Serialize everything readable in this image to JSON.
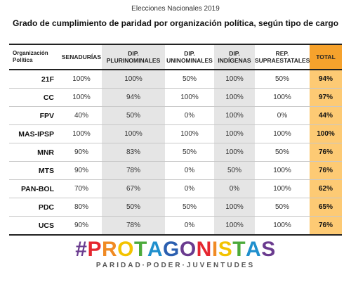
{
  "header": {
    "supertitle": "Elecciones Nacionales 2019",
    "title": "Grado de cumplimiento de paridad por organización política, según tipo de cargo"
  },
  "table": {
    "columns": [
      {
        "key": "org",
        "label": "Organización Política"
      },
      {
        "key": "sen",
        "label": "SENADURÍAS"
      },
      {
        "key": "plur",
        "label": "DIP. PLURINOMINALES"
      },
      {
        "key": "unin",
        "label": "DIP. UNINOMINALES"
      },
      {
        "key": "indig",
        "label": "DIP. INDÍGENAS"
      },
      {
        "key": "supra",
        "label": "REP. SUPRAESTATALES"
      },
      {
        "key": "total",
        "label": "TOTAL"
      }
    ],
    "rows": [
      {
        "org": "21F",
        "sen": "100%",
        "plur": "100%",
        "unin": "50%",
        "indig": "100%",
        "supra": "50%",
        "total": "94%"
      },
      {
        "org": "CC",
        "sen": "100%",
        "plur": "94%",
        "unin": "100%",
        "indig": "100%",
        "supra": "100%",
        "total": "97%"
      },
      {
        "org": "FPV",
        "sen": "40%",
        "plur": "50%",
        "unin": "0%",
        "indig": "100%",
        "supra": "0%",
        "total": "44%"
      },
      {
        "org": "MAS-IPSP",
        "sen": "100%",
        "plur": "100%",
        "unin": "100%",
        "indig": "100%",
        "supra": "100%",
        "total": "100%"
      },
      {
        "org": "MNR",
        "sen": "90%",
        "plur": "83%",
        "unin": "50%",
        "indig": "100%",
        "supra": "50%",
        "total": "76%"
      },
      {
        "org": "MTS",
        "sen": "90%",
        "plur": "78%",
        "unin": "0%",
        "indig": "50%",
        "supra": "100%",
        "total": "76%"
      },
      {
        "org": "PAN-BOL",
        "sen": "70%",
        "plur": "67%",
        "unin": "0%",
        "indig": "0%",
        "supra": "100%",
        "total": "62%"
      },
      {
        "org": "PDC",
        "sen": "80%",
        "plur": "50%",
        "unin": "50%",
        "indig": "100%",
        "supra": "50%",
        "total": "65%"
      },
      {
        "org": "UCS",
        "sen": "90%",
        "plur": "78%",
        "unin": "0%",
        "indig": "100%",
        "supra": "100%",
        "total": "76%"
      }
    ]
  },
  "logo": {
    "text": "#PROTAGONISTAS",
    "tagline": "PARIDAD·PODER·JUVENTUDES",
    "letter_colors": [
      "#6a3b8f",
      "#e5262f",
      "#f08a24",
      "#f3c300",
      "#4caa3a",
      "#1f8fcd",
      "#2b5fb0",
      "#6a3b8f",
      "#e5262f",
      "#f08a24",
      "#f3c300",
      "#4caa3a",
      "#1f8fcd",
      "#6a3b8f"
    ]
  },
  "colors": {
    "total_header": "#f6a22c",
    "total_cell": "#fdca74",
    "shaded_column": "#e5e5e5"
  }
}
